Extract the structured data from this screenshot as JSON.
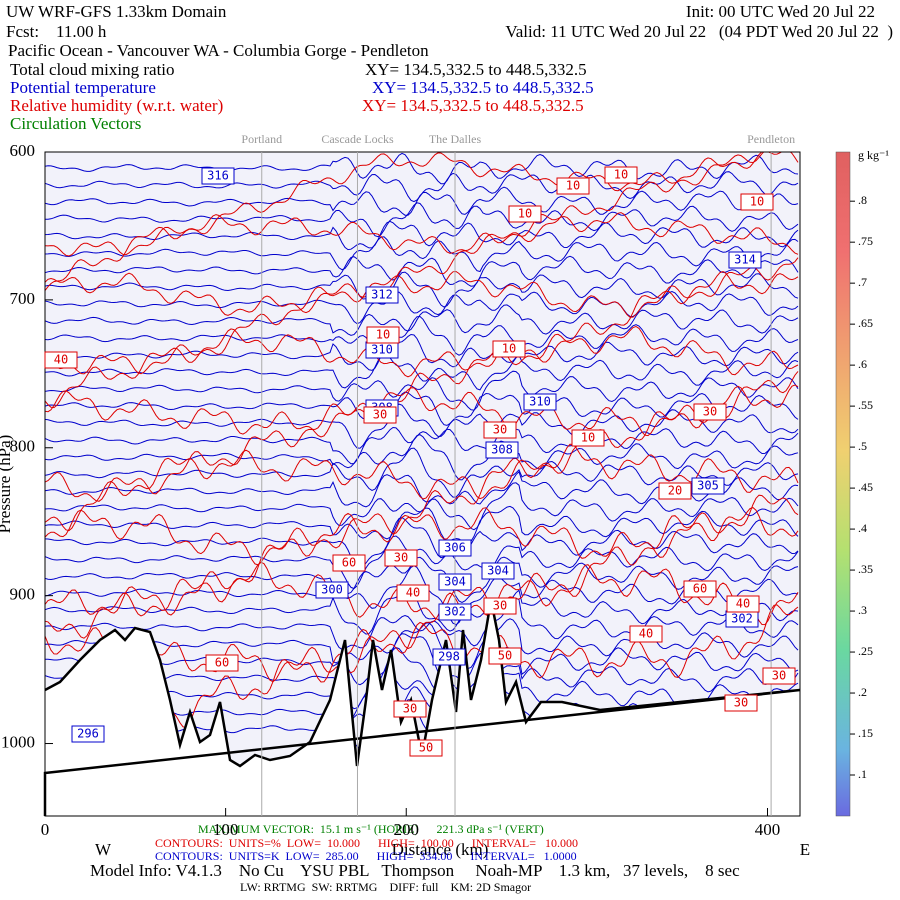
{
  "header": {
    "model": "UW WRF-GFS 1.33km Domain",
    "init": "Init: 00 UTC Wed 20 Jul 22",
    "forecast": "Fcst:    11.00 h",
    "valid": "Valid: 11 UTC Wed 20 Jul 22   (04 PDT Wed 20 Jul 22  )",
    "route": "Pacific Ocean - Vancouver WA - Columbia Gorge - Pendleton"
  },
  "fields": [
    {
      "name": "Total cloud mixing ratio",
      "xy": "XY= 134.5,332.5 to 448.5,332.5",
      "color": "#000000"
    },
    {
      "name": "Potential temperature",
      "xy": "XY= 134.5,332.5 to 448.5,332.5",
      "color": "#0000cc"
    },
    {
      "name": "Relative humidity (w.r.t. water)",
      "xy": "XY= 134.5,332.5 to 448.5,332.5",
      "color": "#dd0000"
    },
    {
      "name": "Circulation Vectors",
      "color": "#008000"
    }
  ],
  "chart_data": {
    "type": "contour",
    "y_label": "Pressure (hPa)",
    "x_label": "Distance (km)",
    "west": "W",
    "east": "E",
    "xlim": [
      0,
      418
    ],
    "xticks": [
      0,
      100,
      200,
      400
    ],
    "ylim": [
      1049,
      600
    ],
    "yticks": [
      600,
      700,
      800,
      900,
      1000
    ],
    "locations": [
      {
        "name": "Portland",
        "km": 120
      },
      {
        "name": "Cascade Locks",
        "km": 173
      },
      {
        "name": "The Dalles",
        "km": 227
      },
      {
        "name": "Pendleton",
        "km": 402
      }
    ],
    "colorbar": {
      "unit": "g kg⁻¹",
      "lim": [
        0.05,
        0.86
      ],
      "ticks": [
        {
          "value": 0.1,
          "label": ".1"
        },
        {
          "value": 0.15,
          "label": ".15"
        },
        {
          "value": 0.2,
          "label": ".2"
        },
        {
          "value": 0.25,
          "label": ".25"
        },
        {
          "value": 0.3,
          "label": ".3"
        },
        {
          "value": 0.35,
          "label": ".35"
        },
        {
          "value": 0.4,
          "label": ".4"
        },
        {
          "value": 0.45,
          "label": ".45"
        },
        {
          "value": 0.5,
          "label": ".5"
        },
        {
          "value": 0.55,
          "label": ".55"
        },
        {
          "value": 0.6,
          "label": ".6"
        },
        {
          "value": 0.65,
          "label": ".65"
        },
        {
          "value": 0.7,
          "label": ".7"
        },
        {
          "value": 0.75,
          "label": ".75"
        },
        {
          "value": 0.8,
          "label": ".8"
        }
      ]
    },
    "potential_temperature_labels": [
      316,
      314,
      312,
      310,
      310,
      308,
      308,
      305,
      306,
      304,
      304,
      302,
      302,
      300,
      298,
      296
    ],
    "humidity_labels": [
      10,
      10,
      10,
      10,
      10,
      10,
      10,
      30,
      30,
      20,
      40,
      30,
      60,
      30,
      40,
      30,
      50,
      60,
      40,
      60,
      40,
      30,
      30,
      50,
      30
    ]
  },
  "footer": {
    "max_vector": "MAXIMUM VECTOR:  15.1 m s⁻¹ (HORIZ)      221.3 dPa s⁻¹ (VERT)",
    "rh_contours": "CONTOURS:  UNITS=%  LOW=  10.000      HIGH=  100.00      INTERVAL=   10.000",
    "theta_contours": "CONTOURS:  UNITS=K  LOW=  285.00      HIGH=  334.00      INTERVAL=   1.0000",
    "model_info": "Model Info: V4.1.3    No Cu    YSU PBL   Thompson     Noah-MP    1.3 km,   37 levels,    8 sec",
    "physics": "LW: RRTMG  SW: RRTMG    DIFF: full    KM: 2D Smagor"
  }
}
